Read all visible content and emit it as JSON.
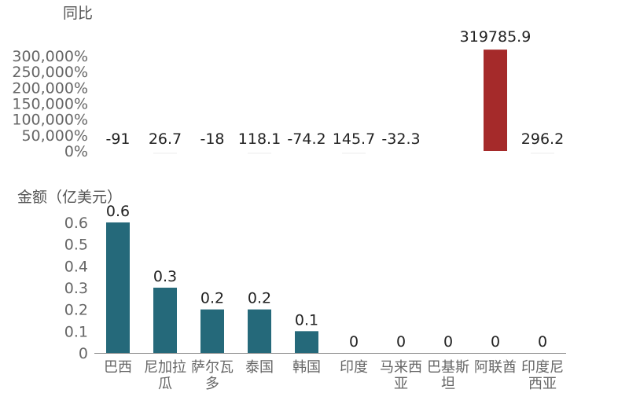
{
  "chart_data": [
    {
      "type": "bar",
      "ylabel": "同比",
      "unit_suffix": "%",
      "categories": [
        "巴西",
        "尼加拉瓜",
        "萨尔瓦多",
        "泰国",
        "韩国",
        "印度",
        "马来西亚",
        "巴基斯坦",
        "阿联酋",
        "印度尼西亚"
      ],
      "values": [
        -91,
        26.7,
        -18,
        118.1,
        -74.2,
        145.7,
        -32.3,
        null,
        319785.9,
        296.2
      ],
      "labels": [
        "-91",
        "26.7",
        "-18",
        "118.1",
        "-74.2",
        "145.7",
        "-32.3",
        "",
        "319785.9",
        "296.2"
      ],
      "yticks": [
        "0%",
        "50,000%",
        "100,000%",
        "150,000%",
        "200,000%",
        "250,000%",
        "300,000%"
      ],
      "ylim": [
        0,
        330000
      ],
      "highlight_color": "#a52a2a",
      "grid": false
    },
    {
      "type": "bar",
      "ylabel": "金额（亿美元）",
      "categories": [
        "巴西",
        "尼加拉瓜",
        "萨尔瓦多",
        "泰国",
        "韩国",
        "印度",
        "马来西亚",
        "巴基斯坦",
        "阿联酋",
        "印度尼西亚"
      ],
      "category_lines": [
        [
          "巴西"
        ],
        [
          "尼加拉",
          "瓜"
        ],
        [
          "萨尔瓦",
          "多"
        ],
        [
          "泰国"
        ],
        [
          "韩国"
        ],
        [
          "印度"
        ],
        [
          "马来西",
          "亚"
        ],
        [
          "巴基斯",
          "坦"
        ],
        [
          "阿联酋"
        ],
        [
          "印度尼",
          "西亚"
        ]
      ],
      "values": [
        0.6,
        0.3,
        0.2,
        0.2,
        0.1,
        0,
        0,
        0,
        0,
        0
      ],
      "labels": [
        "0.6",
        "0.3",
        "0.2",
        "0.2",
        "0.1",
        "0",
        "0",
        "0",
        "0",
        "0"
      ],
      "yticks": [
        "0",
        "0.1",
        "0.2",
        "0.3",
        "0.4",
        "0.5",
        "0.6"
      ],
      "ylim": [
        0,
        0.6
      ],
      "bar_color": "#25697a",
      "grid": false
    }
  ]
}
